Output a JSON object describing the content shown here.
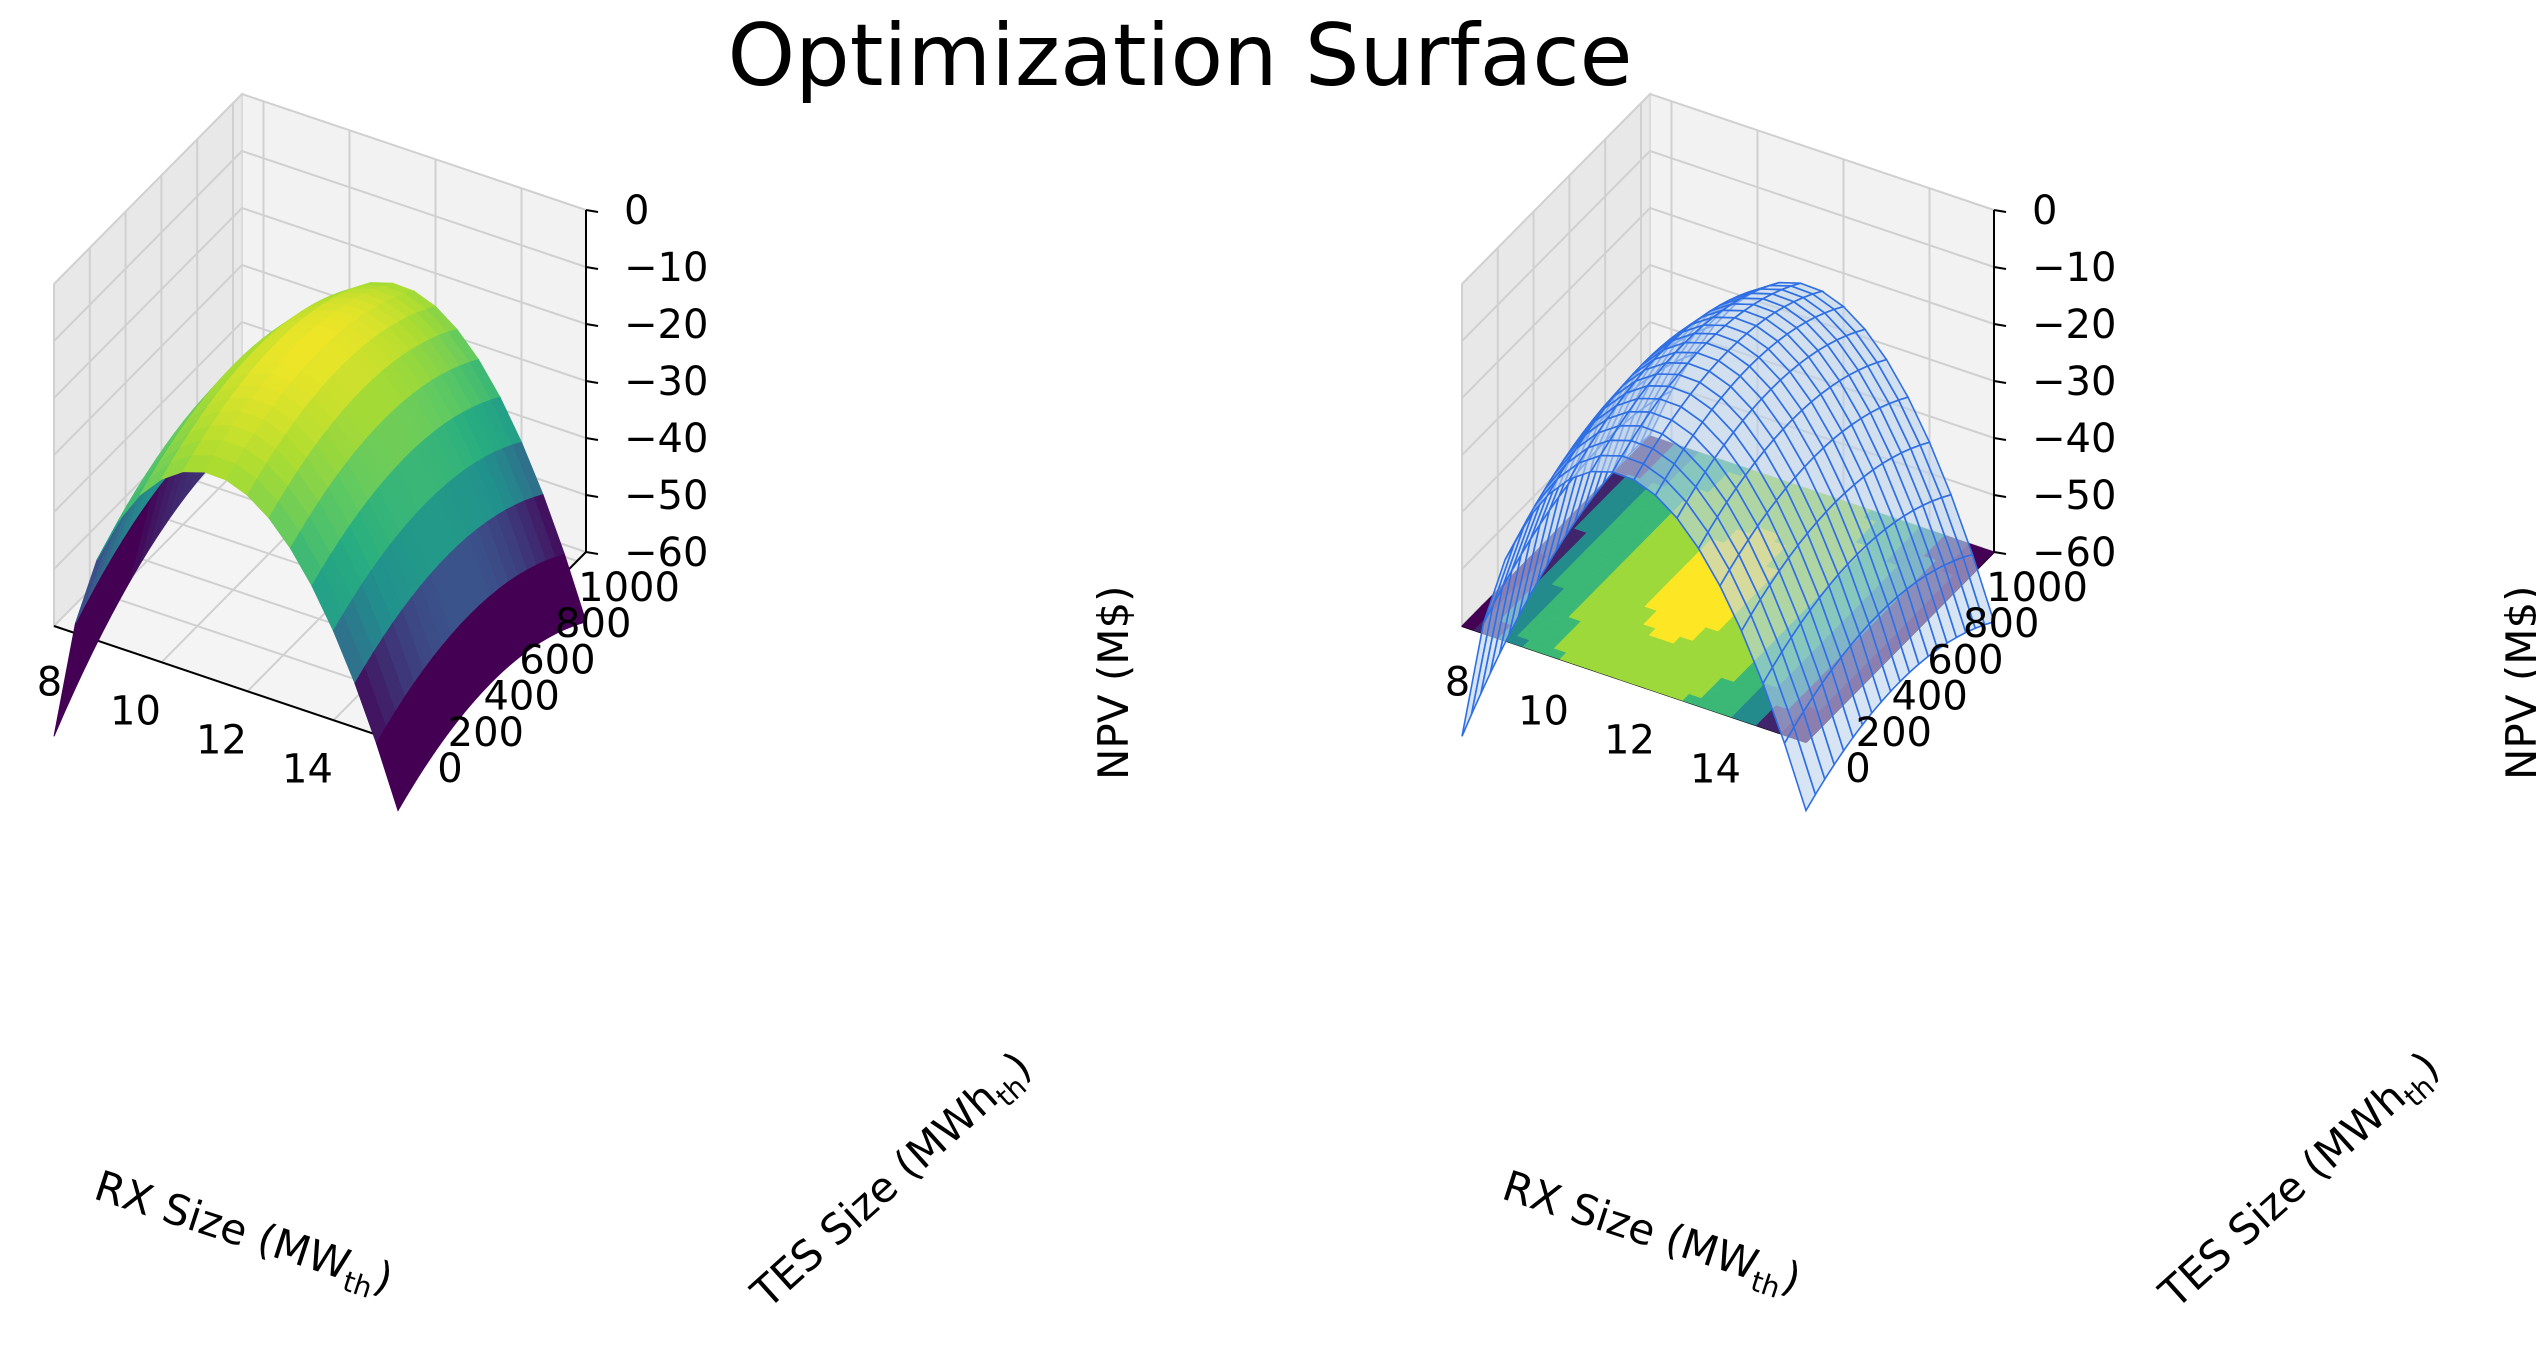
{
  "title": "Optimization Surface",
  "colors": {
    "pane": "#f2f2f2",
    "pane_side": "#e8e8e8",
    "grid": "#d0d0d0",
    "wire": "#2f6fe4",
    "wire_fill": "#bcd2ec",
    "viridis": [
      "#440154",
      "#3b528b",
      "#21918c",
      "#27ad81",
      "#5ec962",
      "#aadc32",
      "#fde725"
    ]
  },
  "chart_data": [
    {
      "type": "surface",
      "name": "left",
      "title": "",
      "xlabel": "RX Size (MW",
      "xlabel_sub": "th",
      "xlabel_tail": ")",
      "ylabel": "TES Size (MWh",
      "ylabel_sub": "th",
      "ylabel_tail": ")",
      "zlabel": "NPV (M$)",
      "xlim": [
        7.5,
        15.5
      ],
      "ylim": [
        0,
        1050
      ],
      "zlim": [
        -60,
        0
      ],
      "xticks": [
        "8",
        "10",
        "12",
        "14"
      ],
      "xtick_values": [
        8,
        10,
        12,
        14
      ],
      "yticks": [
        "0",
        "200",
        "400",
        "600",
        "800",
        "1000"
      ],
      "ytick_values": [
        0,
        200,
        400,
        600,
        800,
        1000
      ],
      "zticks": [
        "0",
        "−10",
        "−20",
        "−30",
        "−40",
        "−50",
        "−60"
      ],
      "ztick_values": [
        0,
        -10,
        -20,
        -30,
        -40,
        -50,
        -60
      ],
      "surface_model": "NPV peaks ~ -18 M$ near RX 11, TES 500 MWh; drops to ~ -58 M$ at RX 7.5, TES 0",
      "colormap": "viridis",
      "style": "solid"
    },
    {
      "type": "surface",
      "name": "right",
      "title": "",
      "xlabel": "RX Size (MW",
      "xlabel_sub": "th",
      "xlabel_tail": ")",
      "ylabel": "TES Size (MWh",
      "ylabel_sub": "th",
      "ylabel_tail": ")",
      "zlabel": "NPV (M$)",
      "xlim": [
        7.5,
        15.5
      ],
      "ylim": [
        0,
        1050
      ],
      "zlim": [
        -60,
        0
      ],
      "xticks": [
        "8",
        "10",
        "12",
        "14"
      ],
      "xtick_values": [
        8,
        10,
        12,
        14
      ],
      "yticks": [
        "0",
        "200",
        "400",
        "600",
        "800",
        "1000"
      ],
      "ytick_values": [
        0,
        200,
        400,
        600,
        800,
        1000
      ],
      "zticks": [
        "0",
        "−10",
        "−20",
        "−30",
        "−40",
        "−50",
        "−60"
      ],
      "ztick_values": [
        0,
        -10,
        -20,
        -30,
        -40,
        -50,
        -60
      ],
      "surface_model": "wireframe of same NPV surface with filled contour projected on floor",
      "colormap": "viridis",
      "style": "wireframe+contour"
    }
  ]
}
